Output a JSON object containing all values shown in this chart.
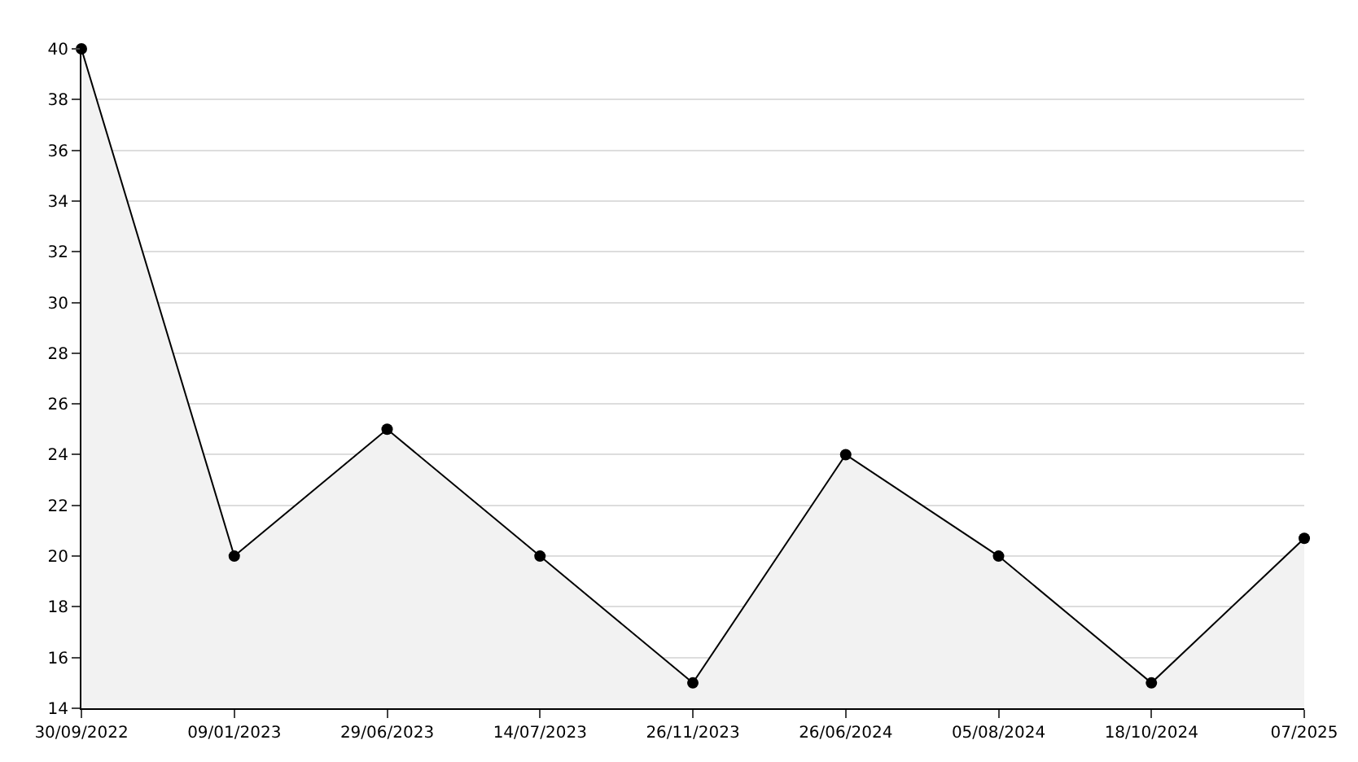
{
  "chart_data": {
    "type": "area",
    "categories": [
      "30/09/2022",
      "09/01/2023",
      "29/06/2023",
      "14/07/2023",
      "26/11/2023",
      "26/06/2024",
      "05/08/2024",
      "18/10/2024",
      "07/2025"
    ],
    "series": [
      {
        "color": "#000000",
        "values": [
          40,
          20,
          25,
          20,
          15,
          24,
          20,
          15,
          20.7
        ]
      }
    ],
    "ylim": [
      14,
      40
    ],
    "yticks": [
      14,
      16,
      18,
      20,
      22,
      24,
      26,
      28,
      30,
      32,
      34,
      36,
      38,
      40
    ],
    "grid": "y",
    "marker": "circle",
    "line_style": "solid"
  }
}
